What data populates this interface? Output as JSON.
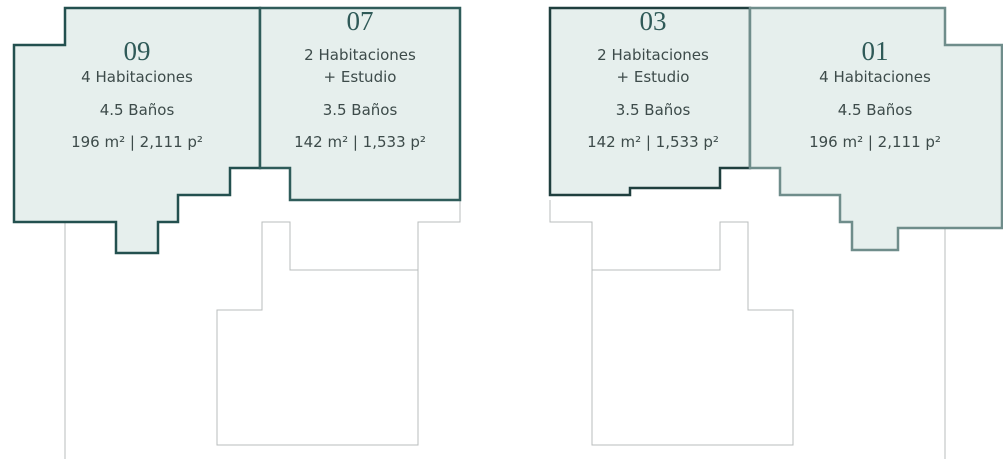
{
  "units": [
    {
      "number": "09",
      "lines": [
        "4 Habitaciones",
        "4.5 Baños",
        "196 m² | 2,111 p²"
      ]
    },
    {
      "number": "07",
      "lines": [
        "2 Habitaciones",
        "+ Estudio",
        "3.5 Baños",
        "142 m² | 1,533 p²"
      ]
    },
    {
      "number": "03",
      "lines": [
        "2 Habitaciones",
        "+ Estudio",
        "3.5 Baños",
        "142 m² | 1,533 p²"
      ]
    },
    {
      "number": "01",
      "lines": [
        "4 Habitaciones",
        "4.5 Baños",
        "196 m² | 2,111 p²"
      ]
    }
  ]
}
